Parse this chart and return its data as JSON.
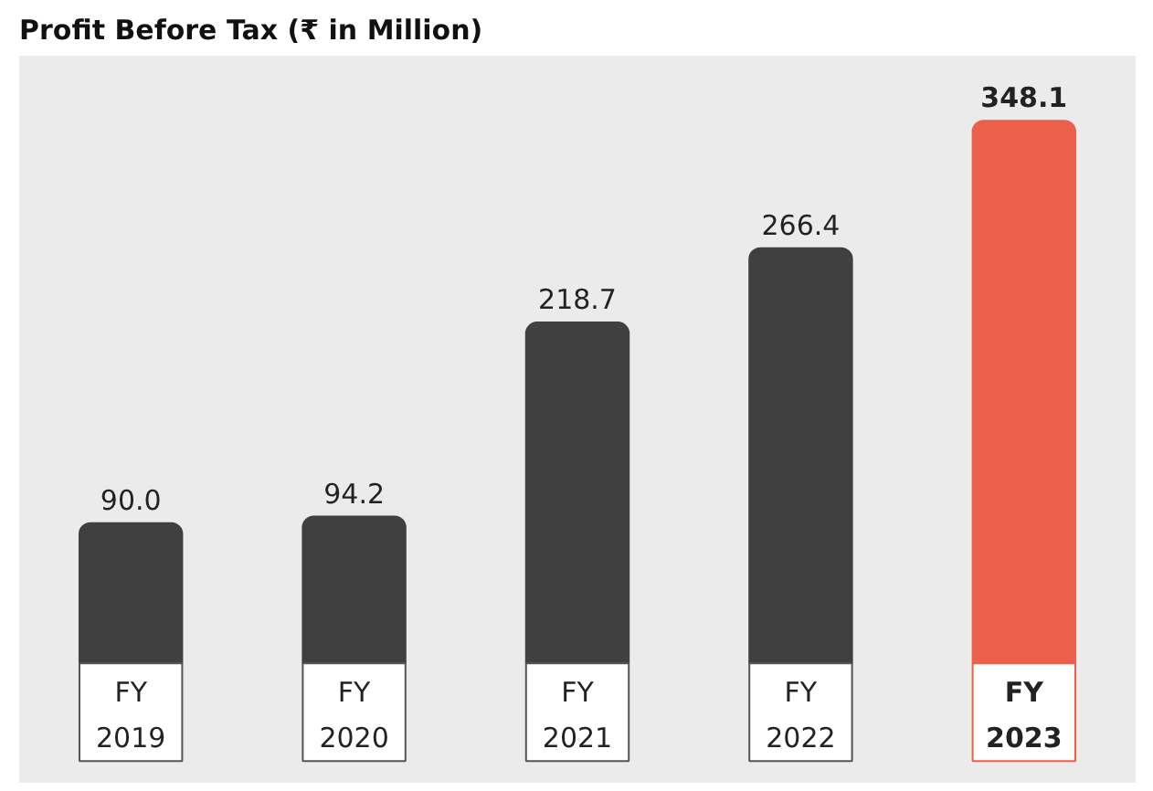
{
  "chart_data": {
    "type": "bar",
    "title": "Profit Before Tax (₹ in Million)",
    "categories": [
      "FY 2019",
      "FY 2020",
      "FY 2021",
      "FY 2022",
      "FY 2023"
    ],
    "values": [
      90.0,
      94.2,
      218.7,
      266.4,
      348.1
    ],
    "value_labels": [
      "90.0",
      "94.2",
      "218.7",
      "266.4",
      "348.1"
    ],
    "colors": [
      "#404041",
      "#404041",
      "#404041",
      "#404041",
      "#ec5f4a"
    ]
  }
}
